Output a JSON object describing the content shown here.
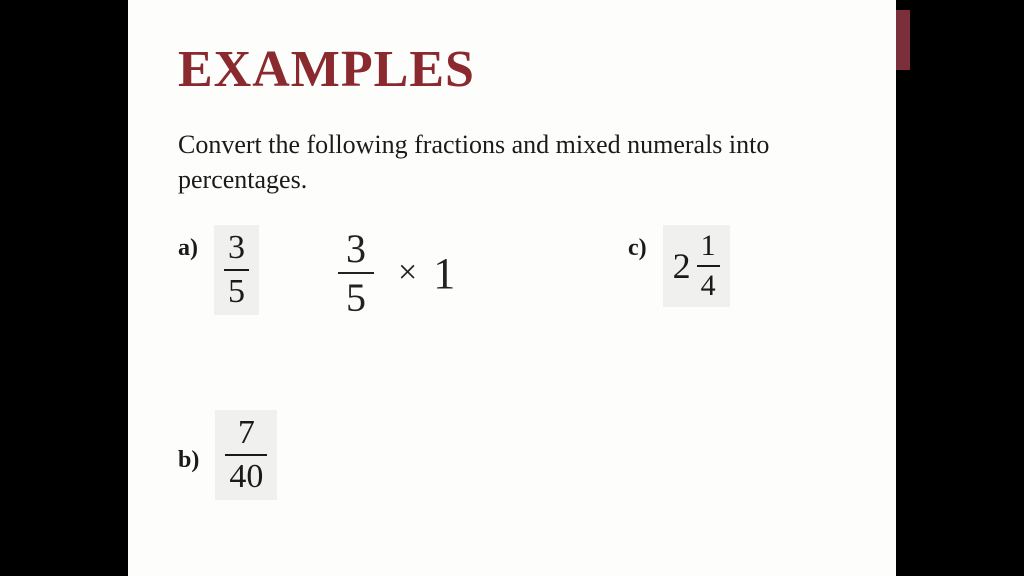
{
  "title": "EXAMPLES",
  "instruction": "Convert the following fractions and mixed numerals into percentages.",
  "problems": {
    "a": {
      "label": "a)",
      "numerator": "3",
      "denominator": "5"
    },
    "b": {
      "label": "b)",
      "numerator": "7",
      "denominator": "40"
    },
    "c": {
      "label": "c)",
      "whole": "2",
      "numerator": "1",
      "denominator": "4"
    }
  },
  "handwriting": {
    "numerator": "3",
    "denominator": "5",
    "operator": "×",
    "operand": "1"
  },
  "colors": {
    "title": "#8a2a2f",
    "text": "#1a1a1a",
    "bg": "#fdfdfc",
    "bars": "#000000",
    "accent": "#7a2f3a",
    "fractionBg": "#f0f0ef"
  }
}
